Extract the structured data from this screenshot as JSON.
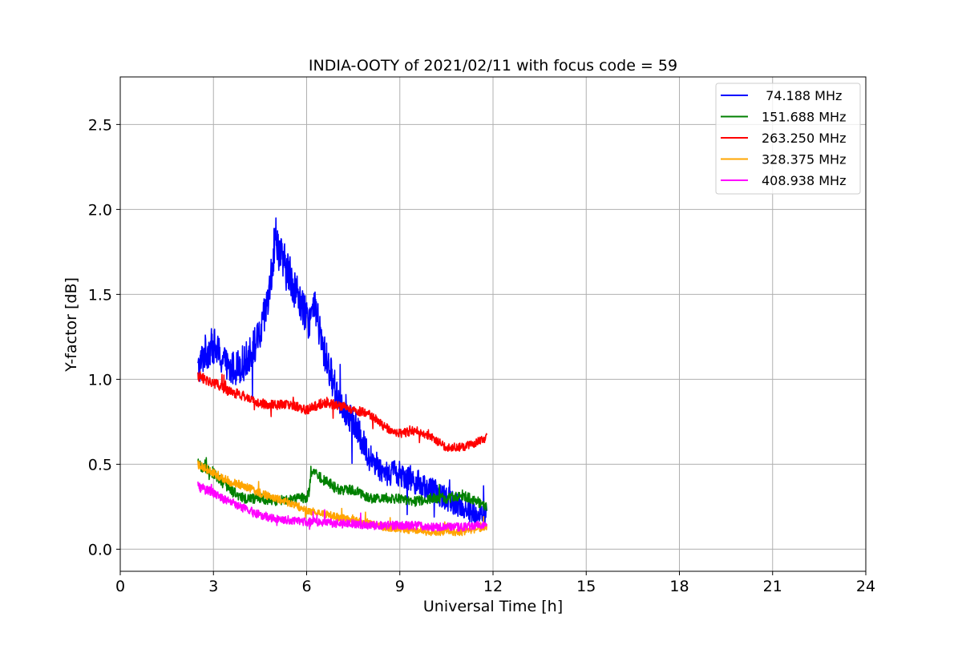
{
  "chart_data": {
    "type": "line",
    "title": "INDIA-OOTY of 2021/02/11 with focus code = 59",
    "xlabel": "Universal Time [h]",
    "ylabel": "Y-factor [dB]",
    "xlim": [
      0,
      24
    ],
    "ylim": [
      -0.13,
      2.78
    ],
    "xticks": [
      0,
      3,
      6,
      9,
      12,
      15,
      18,
      21,
      24
    ],
    "xtick_labels": [
      "0",
      "3",
      "6",
      "9",
      "12",
      "15",
      "18",
      "21",
      "24"
    ],
    "yticks": [
      0.0,
      0.5,
      1.0,
      1.5,
      2.0,
      2.5
    ],
    "ytick_labels": [
      "0.0",
      "0.5",
      "1.0",
      "1.5",
      "2.0",
      "2.5"
    ],
    "grid": true,
    "legend_position": "top-right",
    "series": [
      {
        "name": " 74.188 MHz",
        "color": "#0000ff",
        "noise": 0.12,
        "x": [
          2.5,
          2.7,
          3.0,
          3.5,
          4.0,
          4.5,
          4.8,
          5.0,
          5.2,
          5.5,
          5.8,
          6.0,
          6.3,
          6.5,
          7.0,
          7.5,
          8.0,
          8.5,
          9.0,
          9.5,
          10.0,
          10.5,
          11.0,
          11.5,
          11.8
        ],
        "y": [
          1.05,
          1.15,
          1.2,
          1.05,
          1.1,
          1.25,
          1.5,
          1.85,
          1.7,
          1.6,
          1.45,
          1.35,
          1.4,
          1.2,
          0.9,
          0.75,
          0.55,
          0.45,
          0.45,
          0.4,
          0.35,
          0.3,
          0.25,
          0.2,
          0.2
        ]
      },
      {
        "name": "151.688 MHz",
        "color": "#008000",
        "noise": 0.05,
        "x": [
          2.5,
          3.0,
          3.5,
          4.0,
          4.5,
          5.0,
          5.5,
          6.0,
          6.2,
          6.5,
          7.0,
          7.5,
          8.0,
          8.5,
          9.0,
          9.5,
          10.0,
          10.5,
          11.0,
          11.5,
          11.8
        ],
        "y": [
          0.5,
          0.45,
          0.35,
          0.3,
          0.3,
          0.28,
          0.3,
          0.3,
          0.45,
          0.42,
          0.35,
          0.35,
          0.3,
          0.3,
          0.3,
          0.28,
          0.3,
          0.3,
          0.32,
          0.28,
          0.25
        ]
      },
      {
        "name": "263.250 MHz",
        "color": "#ff0000",
        "noise": 0.035,
        "x": [
          2.5,
          3.0,
          3.5,
          4.0,
          4.5,
          5.0,
          5.5,
          6.0,
          6.5,
          7.0,
          7.5,
          8.0,
          8.5,
          9.0,
          9.5,
          10.0,
          10.5,
          11.0,
          11.5,
          11.8
        ],
        "y": [
          1.02,
          0.98,
          0.93,
          0.9,
          0.85,
          0.85,
          0.85,
          0.82,
          0.86,
          0.85,
          0.82,
          0.8,
          0.72,
          0.68,
          0.7,
          0.66,
          0.6,
          0.6,
          0.63,
          0.66
        ]
      },
      {
        "name": "328.375 MHz",
        "color": "#ffa500",
        "noise": 0.04,
        "x": [
          2.5,
          3.0,
          3.5,
          4.0,
          4.5,
          5.0,
          5.5,
          6.0,
          6.5,
          7.0,
          7.5,
          8.0,
          8.5,
          9.0,
          9.5,
          10.0,
          10.5,
          11.0,
          11.5,
          11.8
        ],
        "y": [
          0.5,
          0.45,
          0.4,
          0.37,
          0.33,
          0.3,
          0.27,
          0.23,
          0.21,
          0.19,
          0.17,
          0.15,
          0.13,
          0.12,
          0.11,
          0.1,
          0.1,
          0.1,
          0.12,
          0.13
        ]
      },
      {
        "name": "408.938 MHz",
        "color": "#ff00ff",
        "noise": 0.045,
        "x": [
          2.5,
          3.0,
          3.5,
          4.0,
          4.5,
          5.0,
          5.5,
          6.0,
          6.5,
          7.0,
          7.5,
          8.0,
          8.5,
          9.0,
          9.5,
          10.0,
          10.5,
          11.0,
          11.5,
          11.8
        ],
        "y": [
          0.37,
          0.33,
          0.28,
          0.24,
          0.2,
          0.18,
          0.17,
          0.16,
          0.16,
          0.15,
          0.15,
          0.14,
          0.14,
          0.14,
          0.14,
          0.13,
          0.13,
          0.13,
          0.14,
          0.14
        ]
      }
    ]
  }
}
